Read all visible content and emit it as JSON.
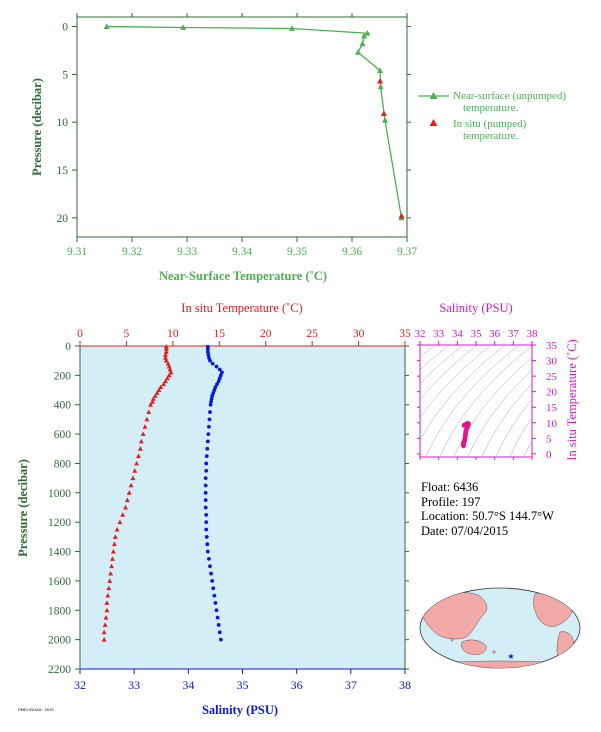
{
  "colors": {
    "green": "#4cb050",
    "axis_green": "#2f6b3b",
    "red": "#e0201e",
    "blue": "#0b1ad9",
    "magenta": "#d21ac8",
    "panel_bg": "#d4eef8",
    "land": "#f2aaa8",
    "ocean": "#d4eef8"
  },
  "float_info": {
    "float_label": "Float:",
    "float_value": "6436",
    "profile_label": "Profile:",
    "profile_value": "197",
    "location_label": "Location:",
    "location_value": "50.7°S  144.7°W",
    "date_label": "Date:",
    "date_value": "07/04/2015"
  },
  "footer_text": "PMEL/NOAA · 2015",
  "chart_data": [
    {
      "id": "near-surface",
      "type": "line",
      "title": "",
      "xlabel": "Near-Surface Temperature (˚C)",
      "ylabel": "Pressure (decibar)",
      "xlim": [
        9.31,
        9.37
      ],
      "ylim": [
        22,
        -1
      ],
      "x_ticks": [
        "9.31",
        "9.32",
        "9.33",
        "9.34",
        "9.35",
        "9.36",
        "9.37"
      ],
      "y_ticks": [
        "0",
        "5",
        "10",
        "15",
        "20"
      ],
      "legend_position": "right",
      "series": [
        {
          "name": "Near-surface (unpumped)\ntemperature.",
          "marker": "triangle",
          "color": "#4cb050",
          "points": [
            [
              9.3154,
              0.0
            ],
            [
              9.3293,
              0.1
            ],
            [
              9.3491,
              0.2
            ],
            [
              9.3628,
              0.7
            ],
            [
              9.3622,
              1.0
            ],
            [
              9.3619,
              1.8
            ],
            [
              9.3611,
              2.7
            ],
            [
              9.3651,
              4.6
            ],
            [
              9.3652,
              6.3
            ],
            [
              9.366,
              9.8
            ],
            [
              9.369,
              20.0
            ]
          ]
        },
        {
          "name": "In situ (pumped)\ntemperature.",
          "marker": "triangle",
          "color": "#e0201e",
          "points": [
            [
              9.3651,
              5.7
            ],
            [
              9.3658,
              9.1
            ],
            [
              9.369,
              19.8
            ]
          ]
        }
      ]
    },
    {
      "id": "profile",
      "type": "scatter",
      "title": "",
      "xlabel_top": "In situ Temperature (˚C)",
      "xlabel_bottom": "Salinity (PSU)",
      "ylabel": "Pressure (decibar)",
      "top_xlim": [
        0,
        35
      ],
      "bottom_xlim": [
        32,
        38
      ],
      "ylim": [
        2200,
        0
      ],
      "top_ticks": [
        "0",
        "5",
        "10",
        "15",
        "20",
        "25",
        "30",
        "35"
      ],
      "bottom_ticks": [
        "32",
        "33",
        "34",
        "35",
        "36",
        "37",
        "38"
      ],
      "y_ticks": [
        "0",
        "200",
        "400",
        "600",
        "800",
        "1000",
        "1200",
        "1400",
        "1600",
        "1800",
        "2000",
        "2200"
      ],
      "temperature": {
        "name": "In situ Temperature (˚C)",
        "color": "#e0201e",
        "marker": "triangle",
        "points": [
          [
            9.3,
            5
          ],
          [
            9.3,
            20
          ],
          [
            9.3,
            40
          ],
          [
            9.2,
            60
          ],
          [
            9.2,
            80
          ],
          [
            9.3,
            100
          ],
          [
            9.5,
            120
          ],
          [
            9.6,
            140
          ],
          [
            9.7,
            160
          ],
          [
            9.8,
            180
          ],
          [
            9.6,
            200
          ],
          [
            9.4,
            220
          ],
          [
            9.2,
            240
          ],
          [
            9.0,
            260
          ],
          [
            8.7,
            280
          ],
          [
            8.5,
            300
          ],
          [
            8.3,
            320
          ],
          [
            8.1,
            340
          ],
          [
            7.9,
            360
          ],
          [
            7.8,
            380
          ],
          [
            7.6,
            400
          ],
          [
            7.4,
            450
          ],
          [
            7.2,
            500
          ],
          [
            7.0,
            550
          ],
          [
            6.8,
            600
          ],
          [
            6.6,
            650
          ],
          [
            6.5,
            700
          ],
          [
            6.3,
            750
          ],
          [
            6.1,
            800
          ],
          [
            5.9,
            850
          ],
          [
            5.7,
            900
          ],
          [
            5.5,
            950
          ],
          [
            5.3,
            1000
          ],
          [
            5.1,
            1050
          ],
          [
            4.9,
            1100
          ],
          [
            4.6,
            1150
          ],
          [
            4.3,
            1200
          ],
          [
            4.0,
            1250
          ],
          [
            3.8,
            1300
          ],
          [
            3.7,
            1350
          ],
          [
            3.6,
            1400
          ],
          [
            3.5,
            1450
          ],
          [
            3.4,
            1500
          ],
          [
            3.3,
            1550
          ],
          [
            3.2,
            1600
          ],
          [
            3.1,
            1650
          ],
          [
            3.0,
            1700
          ],
          [
            2.9,
            1750
          ],
          [
            2.9,
            1800
          ],
          [
            2.8,
            1850
          ],
          [
            2.7,
            1900
          ],
          [
            2.6,
            1950
          ],
          [
            2.6,
            2000
          ]
        ]
      },
      "salinity": {
        "name": "Salinity (PSU)",
        "color": "#0b1ad9",
        "marker": "dot",
        "points": [
          [
            34.36,
            5
          ],
          [
            34.36,
            20
          ],
          [
            34.36,
            40
          ],
          [
            34.37,
            60
          ],
          [
            34.38,
            80
          ],
          [
            34.4,
            100
          ],
          [
            34.45,
            120
          ],
          [
            34.52,
            140
          ],
          [
            34.58,
            160
          ],
          [
            34.62,
            180
          ],
          [
            34.6,
            200
          ],
          [
            34.58,
            220
          ],
          [
            34.56,
            240
          ],
          [
            34.53,
            260
          ],
          [
            34.5,
            280
          ],
          [
            34.48,
            300
          ],
          [
            34.46,
            320
          ],
          [
            34.44,
            340
          ],
          [
            34.43,
            360
          ],
          [
            34.42,
            380
          ],
          [
            34.41,
            400
          ],
          [
            34.4,
            450
          ],
          [
            34.39,
            500
          ],
          [
            34.38,
            550
          ],
          [
            34.37,
            600
          ],
          [
            34.36,
            650
          ],
          [
            34.35,
            700
          ],
          [
            34.34,
            750
          ],
          [
            34.33,
            800
          ],
          [
            34.33,
            850
          ],
          [
            34.32,
            900
          ],
          [
            34.32,
            950
          ],
          [
            34.32,
            1000
          ],
          [
            34.32,
            1050
          ],
          [
            34.32,
            1100
          ],
          [
            34.33,
            1150
          ],
          [
            34.33,
            1200
          ],
          [
            34.33,
            1250
          ],
          [
            34.34,
            1300
          ],
          [
            34.35,
            1350
          ],
          [
            34.36,
            1400
          ],
          [
            34.38,
            1450
          ],
          [
            34.4,
            1500
          ],
          [
            34.42,
            1550
          ],
          [
            34.44,
            1600
          ],
          [
            34.46,
            1650
          ],
          [
            34.48,
            1700
          ],
          [
            34.5,
            1750
          ],
          [
            34.52,
            1800
          ],
          [
            34.54,
            1850
          ],
          [
            34.56,
            1900
          ],
          [
            34.58,
            1950
          ],
          [
            34.6,
            2000
          ]
        ]
      }
    },
    {
      "id": "ts-diagram",
      "type": "scatter",
      "title": "",
      "xlabel": "Salinity (PSU)",
      "ylabel": "In situ Temperature (˚C)",
      "xlim": [
        32,
        38
      ],
      "ylim": [
        -1,
        35
      ],
      "x_ticks": [
        "32",
        "33",
        "34",
        "35",
        "36",
        "37",
        "38"
      ],
      "y_ticks": [
        "0",
        "5",
        "10",
        "15",
        "20",
        "25",
        "30",
        "35"
      ],
      "points_color": "#e0148c",
      "points": [
        [
          34.33,
          2.6
        ],
        [
          34.32,
          2.8
        ],
        [
          34.32,
          3.0
        ],
        [
          34.33,
          3.2
        ],
        [
          34.34,
          3.5
        ],
        [
          34.36,
          3.8
        ],
        [
          34.38,
          4.2
        ],
        [
          34.4,
          4.6
        ],
        [
          34.41,
          5.0
        ],
        [
          34.42,
          5.5
        ],
        [
          34.43,
          6.0
        ],
        [
          34.44,
          6.5
        ],
        [
          34.45,
          7.0
        ],
        [
          34.47,
          7.5
        ],
        [
          34.5,
          8.0
        ],
        [
          34.53,
          8.5
        ],
        [
          34.56,
          9.0
        ],
        [
          34.6,
          9.6
        ],
        [
          34.58,
          9.8
        ],
        [
          34.52,
          9.7
        ],
        [
          34.45,
          9.5
        ],
        [
          34.4,
          9.3
        ],
        [
          34.37,
          9.2
        ],
        [
          34.36,
          9.2
        ]
      ]
    }
  ],
  "map": {
    "marker_label": "float-location"
  }
}
